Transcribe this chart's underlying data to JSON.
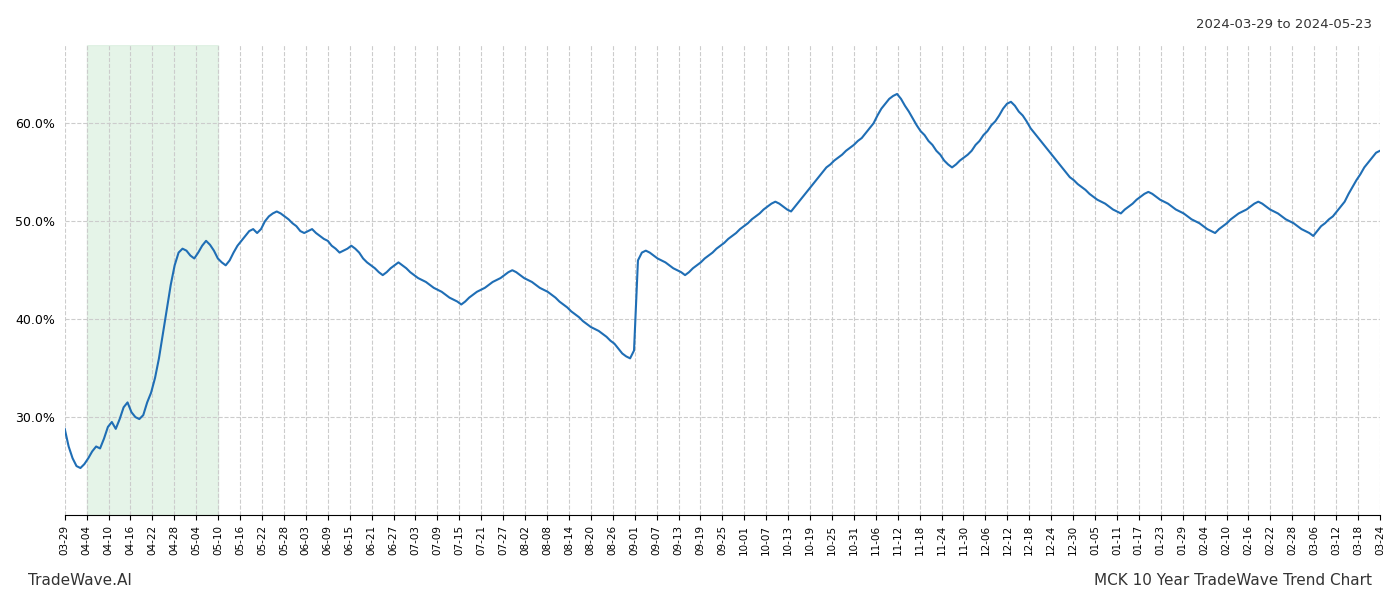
{
  "title_right": "2024-03-29 to 2024-05-23",
  "footer_left": "TradeWave.AI",
  "footer_right": "MCK 10 Year TradeWave Trend Chart",
  "line_color": "#1f6eb5",
  "line_width": 1.5,
  "shade_color": "#d4edda",
  "shade_alpha": 0.6,
  "background_color": "#ffffff",
  "grid_color": "#cccccc",
  "grid_style": "--",
  "yticks": [
    0.3,
    0.4,
    0.5,
    0.6
  ],
  "ylim": [
    0.2,
    0.68
  ],
  "xlabels": [
    "03-29",
    "04-04",
    "04-10",
    "04-16",
    "04-22",
    "04-28",
    "05-04",
    "05-10",
    "05-16",
    "05-22",
    "05-28",
    "06-03",
    "06-09",
    "06-15",
    "06-21",
    "06-27",
    "07-03",
    "07-09",
    "07-15",
    "07-21",
    "07-27",
    "08-02",
    "08-08",
    "08-14",
    "08-20",
    "08-26",
    "09-01",
    "09-07",
    "09-13",
    "09-19",
    "09-25",
    "10-01",
    "10-07",
    "10-13",
    "10-19",
    "10-25",
    "10-31",
    "11-06",
    "11-12",
    "11-18",
    "11-24",
    "11-30",
    "12-06",
    "12-12",
    "12-18",
    "12-24",
    "12-30",
    "01-05",
    "01-11",
    "01-17",
    "01-23",
    "01-29",
    "02-04",
    "02-10",
    "02-16",
    "02-22",
    "02-28",
    "03-06",
    "03-12",
    "03-18",
    "03-24"
  ],
  "shade_label_start": "04-04",
  "shade_label_end": "05-10",
  "values": [
    0.288,
    0.27,
    0.258,
    0.25,
    0.248,
    0.252,
    0.258,
    0.265,
    0.27,
    0.268,
    0.278,
    0.29,
    0.295,
    0.288,
    0.298,
    0.31,
    0.315,
    0.305,
    0.3,
    0.298,
    0.302,
    0.315,
    0.325,
    0.34,
    0.36,
    0.385,
    0.41,
    0.435,
    0.455,
    0.468,
    0.472,
    0.47,
    0.465,
    0.462,
    0.468,
    0.475,
    0.48,
    0.476,
    0.47,
    0.462,
    0.458,
    0.455,
    0.46,
    0.468,
    0.475,
    0.48,
    0.485,
    0.49,
    0.492,
    0.488,
    0.492,
    0.5,
    0.505,
    0.508,
    0.51,
    0.508,
    0.505,
    0.502,
    0.498,
    0.495,
    0.49,
    0.488,
    0.49,
    0.492,
    0.488,
    0.485,
    0.482,
    0.48,
    0.475,
    0.472,
    0.468,
    0.47,
    0.472,
    0.475,
    0.472,
    0.468,
    0.462,
    0.458,
    0.455,
    0.452,
    0.448,
    0.445,
    0.448,
    0.452,
    0.455,
    0.458,
    0.455,
    0.452,
    0.448,
    0.445,
    0.442,
    0.44,
    0.438,
    0.435,
    0.432,
    0.43,
    0.428,
    0.425,
    0.422,
    0.42,
    0.418,
    0.415,
    0.418,
    0.422,
    0.425,
    0.428,
    0.43,
    0.432,
    0.435,
    0.438,
    0.44,
    0.442,
    0.445,
    0.448,
    0.45,
    0.448,
    0.445,
    0.442,
    0.44,
    0.438,
    0.435,
    0.432,
    0.43,
    0.428,
    0.425,
    0.422,
    0.418,
    0.415,
    0.412,
    0.408,
    0.405,
    0.402,
    0.398,
    0.395,
    0.392,
    0.39,
    0.388,
    0.385,
    0.382,
    0.378,
    0.375,
    0.37,
    0.365,
    0.362,
    0.36,
    0.368,
    0.46,
    0.468,
    0.47,
    0.468,
    0.465,
    0.462,
    0.46,
    0.458,
    0.455,
    0.452,
    0.45,
    0.448,
    0.445,
    0.448,
    0.452,
    0.455,
    0.458,
    0.462,
    0.465,
    0.468,
    0.472,
    0.475,
    0.478,
    0.482,
    0.485,
    0.488,
    0.492,
    0.495,
    0.498,
    0.502,
    0.505,
    0.508,
    0.512,
    0.515,
    0.518,
    0.52,
    0.518,
    0.515,
    0.512,
    0.51,
    0.515,
    0.52,
    0.525,
    0.53,
    0.535,
    0.54,
    0.545,
    0.55,
    0.555,
    0.558,
    0.562,
    0.565,
    0.568,
    0.572,
    0.575,
    0.578,
    0.582,
    0.585,
    0.59,
    0.595,
    0.6,
    0.608,
    0.615,
    0.62,
    0.625,
    0.628,
    0.63,
    0.625,
    0.618,
    0.612,
    0.605,
    0.598,
    0.592,
    0.588,
    0.582,
    0.578,
    0.572,
    0.568,
    0.562,
    0.558,
    0.555,
    0.558,
    0.562,
    0.565,
    0.568,
    0.572,
    0.578,
    0.582,
    0.588,
    0.592,
    0.598,
    0.602,
    0.608,
    0.615,
    0.62,
    0.622,
    0.618,
    0.612,
    0.608,
    0.602,
    0.595,
    0.59,
    0.585,
    0.58,
    0.575,
    0.57,
    0.565,
    0.56,
    0.555,
    0.55,
    0.545,
    0.542,
    0.538,
    0.535,
    0.532,
    0.528,
    0.525,
    0.522,
    0.52,
    0.518,
    0.515,
    0.512,
    0.51,
    0.508,
    0.512,
    0.515,
    0.518,
    0.522,
    0.525,
    0.528,
    0.53,
    0.528,
    0.525,
    0.522,
    0.52,
    0.518,
    0.515,
    0.512,
    0.51,
    0.508,
    0.505,
    0.502,
    0.5,
    0.498,
    0.495,
    0.492,
    0.49,
    0.488,
    0.492,
    0.495,
    0.498,
    0.502,
    0.505,
    0.508,
    0.51,
    0.512,
    0.515,
    0.518,
    0.52,
    0.518,
    0.515,
    0.512,
    0.51,
    0.508,
    0.505,
    0.502,
    0.5,
    0.498,
    0.495,
    0.492,
    0.49,
    0.488,
    0.485,
    0.49,
    0.495,
    0.498,
    0.502,
    0.505,
    0.51,
    0.515,
    0.52,
    0.528,
    0.535,
    0.542,
    0.548,
    0.555,
    0.56,
    0.565,
    0.57,
    0.572
  ]
}
